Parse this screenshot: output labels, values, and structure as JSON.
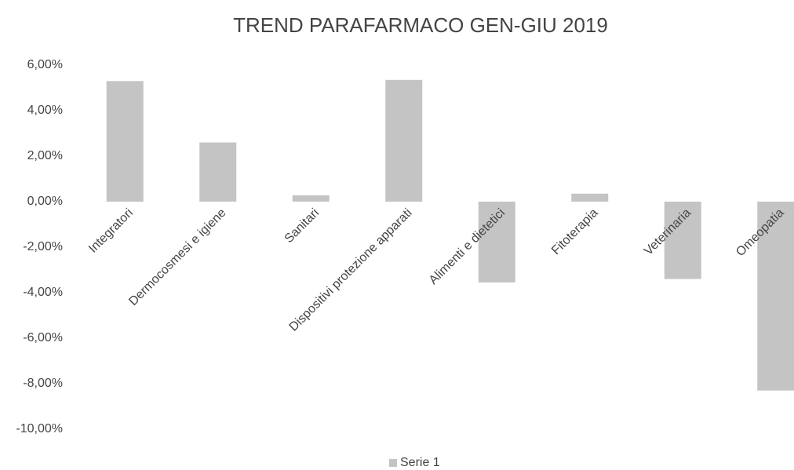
{
  "chart_data": {
    "type": "bar",
    "title": "TREND PARAFARMACO GEN-GIU 2019",
    "categories": [
      "Integratori",
      "Dermocosmesi e igiene",
      "Sanitari",
      "Dispositivi protezione apparati",
      "Alimenti e dietetici",
      "Fitoterapia",
      "Veterinaria",
      "Omeopatia"
    ],
    "series": [
      {
        "name": "Serie 1",
        "color": "#c4c4c4",
        "values": [
          5.3,
          2.6,
          0.28,
          5.35,
          -3.55,
          0.35,
          -3.4,
          -8.3
        ]
      }
    ],
    "ylim": [
      -10,
      6
    ],
    "yticks": [
      {
        "value": 6,
        "label": "6,00%"
      },
      {
        "value": 4,
        "label": "4,00%"
      },
      {
        "value": 2,
        "label": "2,00%"
      },
      {
        "value": 0,
        "label": "0,00%"
      },
      {
        "value": -2,
        "label": "-2,00%"
      },
      {
        "value": -4,
        "label": "-4,00%"
      },
      {
        "value": -6,
        "label": "-6,00%"
      },
      {
        "value": -8,
        "label": "-8,00%"
      },
      {
        "value": -10,
        "label": "-10,00%"
      }
    ],
    "grid": false,
    "legend": "bottom"
  }
}
